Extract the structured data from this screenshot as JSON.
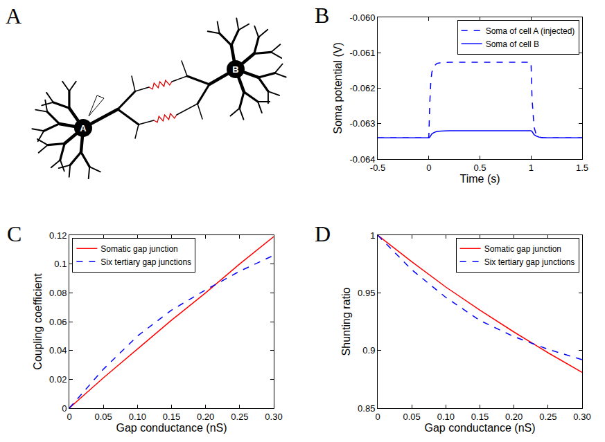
{
  "diagram": {
    "panel": "A",
    "nodes": [
      {
        "label": "A"
      },
      {
        "label": "B"
      }
    ]
  },
  "chart_data": [
    {
      "panel": "B",
      "type": "line",
      "xlabel": "Time (s)",
      "ylabel": "Soma potential (V)",
      "x": [
        -0.5,
        0,
        0.01,
        0.02,
        0.03,
        0.05,
        0.08,
        0.12,
        0.2,
        0.5,
        1.0,
        1.01,
        1.02,
        1.03,
        1.05,
        1.08,
        1.12,
        1.2,
        1.5
      ],
      "series": [
        {
          "name": "Soma of cell A (injected)",
          "color": "#0000ff",
          "line_style": "dashed",
          "values": [
            -0.0634,
            -0.0634,
            -0.0624,
            -0.0618,
            -0.06155,
            -0.06138,
            -0.0613,
            -0.06128,
            -0.06127,
            -0.06127,
            -0.06127,
            -0.0623,
            -0.0628,
            -0.0631,
            -0.0633,
            -0.06338,
            -0.0634,
            -0.0634,
            -0.0634
          ]
        },
        {
          "name": "Soma of cell B",
          "color": "#0000ff",
          "line_style": "solid",
          "values": [
            -0.0634,
            -0.0634,
            -0.06338,
            -0.06333,
            -0.06329,
            -0.06325,
            -0.06322,
            -0.06321,
            -0.0632,
            -0.0632,
            -0.0632,
            -0.06322,
            -0.06327,
            -0.06331,
            -0.06335,
            -0.06338,
            -0.0634,
            -0.0634,
            -0.0634
          ]
        }
      ],
      "xlim": [
        -0.5,
        1.5
      ],
      "xticks": [
        -0.5,
        0,
        0.5,
        1,
        1.5
      ],
      "ylim": [
        -0.064,
        -0.06
      ],
      "yticks": [
        -0.064,
        -0.063,
        -0.062,
        -0.061,
        {
          "value": -0.06,
          "label": "-0.060"
        }
      ],
      "legend": "upper right",
      "grid": false
    },
    {
      "panel": "C",
      "type": "line",
      "xlabel": "Gap conductance (nS)",
      "ylabel": "Coupling coefficient",
      "x": [
        0,
        0.05,
        0.1,
        0.15,
        0.2,
        0.25,
        0.3
      ],
      "series": [
        {
          "name": "Somatic gap junction",
          "color": "#ff0000",
          "line_style": "solid",
          "values": [
            0,
            0.021,
            0.041,
            0.061,
            0.08,
            0.1,
            0.119
          ]
        },
        {
          "name": "Six tertiary gap junctions",
          "color": "#0000ff",
          "line_style": "dashed",
          "values": [
            0,
            0.027,
            0.05,
            0.068,
            0.082,
            0.095,
            0.106
          ]
        }
      ],
      "xlim": [
        0,
        0.3
      ],
      "xticks": [
        0,
        0.05,
        {
          "value": 0.1,
          "label": "0.10"
        },
        0.15,
        {
          "value": 0.2,
          "label": "0.20"
        },
        0.25,
        {
          "value": 0.3,
          "label": "0.30"
        }
      ],
      "ylim": [
        0,
        0.12
      ],
      "yticks": [
        0,
        0.02,
        0.04,
        0.06,
        0.08,
        0.1,
        0.12
      ],
      "legend": "upper left",
      "grid": false
    },
    {
      "panel": "D",
      "type": "line",
      "xlabel": "Gap conductance (nS)",
      "ylabel": "Shunting ratio",
      "x": [
        0,
        0.05,
        0.1,
        0.15,
        0.2,
        0.25,
        0.3
      ],
      "series": [
        {
          "name": "Somatic gap junction",
          "color": "#ff0000",
          "line_style": "solid",
          "values": [
            1,
            0.977,
            0.955,
            0.935,
            0.916,
            0.898,
            0.881
          ]
        },
        {
          "name": "Six tertiary gap junctions",
          "color": "#0000ff",
          "line_style": "dashed",
          "values": [
            1,
            0.97,
            0.946,
            0.926,
            0.912,
            0.901,
            0.892
          ]
        }
      ],
      "xlim": [
        0,
        0.3
      ],
      "xticks": [
        0,
        0.05,
        {
          "value": 0.1,
          "label": "0.10"
        },
        0.15,
        {
          "value": 0.2,
          "label": "0.20"
        },
        0.25,
        {
          "value": 0.3,
          "label": "0.30"
        }
      ],
      "ylim": [
        0.85,
        1
      ],
      "yticks": [
        0.85,
        0.9,
        0.95,
        1
      ],
      "legend": "upper right",
      "grid": false
    }
  ]
}
